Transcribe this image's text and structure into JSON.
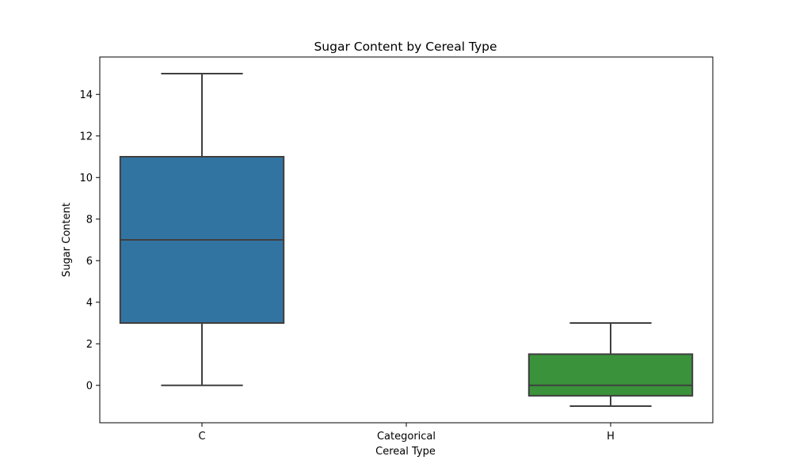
{
  "chart_data": {
    "type": "box",
    "title": "Sugar Content by Cereal Type",
    "xlabel": "Cereal Type",
    "ylabel": "Sugar Content",
    "categories": [
      "C",
      "Categorical",
      "H"
    ],
    "ylim": [
      -1.8,
      15.8
    ],
    "yticks": [
      0,
      2,
      4,
      6,
      8,
      10,
      12,
      14
    ],
    "grid": false,
    "boxes": [
      {
        "category": "C",
        "whisker_low": 0,
        "q1": 3,
        "median": 7,
        "q3": 11,
        "whisker_high": 15,
        "color": "#3274a1"
      },
      {
        "category": "Categorical",
        "empty": true
      },
      {
        "category": "H",
        "whisker_low": -1,
        "q1": -0.5,
        "median": 0,
        "q3": 1.5,
        "whisker_high": 3,
        "color": "#3a923a"
      }
    ]
  }
}
